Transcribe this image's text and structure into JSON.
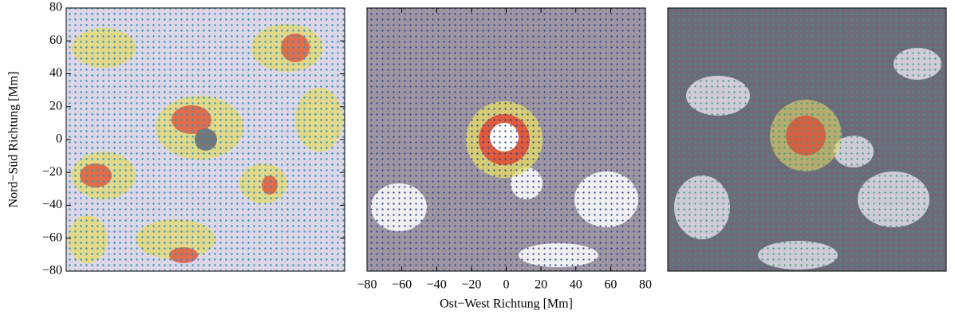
{
  "chart_data": [
    {
      "type": "vector",
      "ylabel": "Nord−Süd Richtung [Mm]",
      "xlim": [
        -80,
        80
      ],
      "ylim": [
        -80,
        80
      ],
      "yticks": [
        {
          "value": -80,
          "label": "−80"
        },
        {
          "value": -60,
          "label": "−60"
        },
        {
          "value": -40,
          "label": "−40"
        },
        {
          "value": -20,
          "label": "−20"
        },
        0,
        20,
        40,
        60,
        80
      ]
    },
    {
      "type": "vector",
      "xlabel": "Ost−West Richtung [Mm]",
      "xlim": [
        -80,
        80
      ],
      "ylim": [
        -80,
        80
      ],
      "xticks": [
        {
          "value": -80,
          "label": "−80"
        },
        {
          "value": -60,
          "label": "−60"
        },
        {
          "value": -40,
          "label": "−40"
        },
        {
          "value": -20,
          "label": "−20"
        },
        0,
        20,
        40,
        60,
        80
      ]
    },
    {
      "type": "vector",
      "xlim": [
        -80,
        80
      ],
      "ylim": [
        -80,
        80
      ]
    }
  ]
}
